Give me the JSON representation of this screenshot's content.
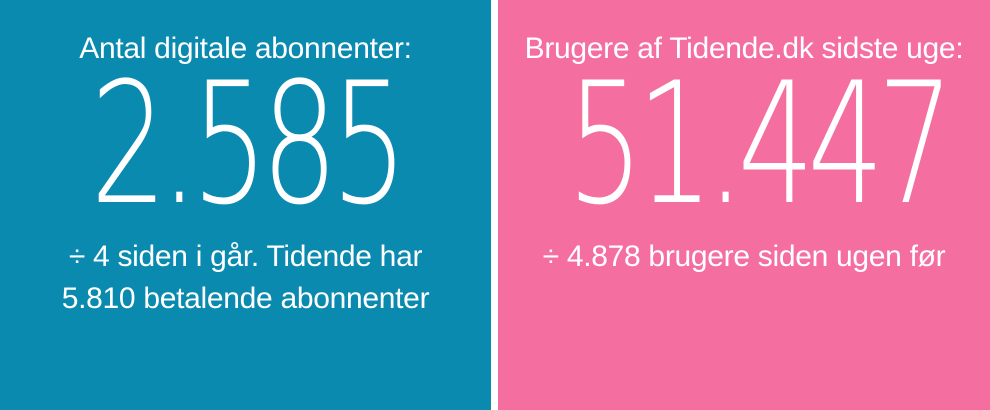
{
  "left": {
    "headline": "Antal digitale abonnenter:",
    "value": "2.585",
    "sub_line_1": "÷ 4 siden i går. Tidende har",
    "sub_line_2": "5.810 betalende abonnenter",
    "background": "#0b8ab0"
  },
  "right": {
    "headline": "Brugere af Tidende.dk sidste uge:",
    "value": "51.447",
    "sub_line_1": "÷ 4.878 brugere siden ugen før",
    "background": "#f46f9f"
  }
}
